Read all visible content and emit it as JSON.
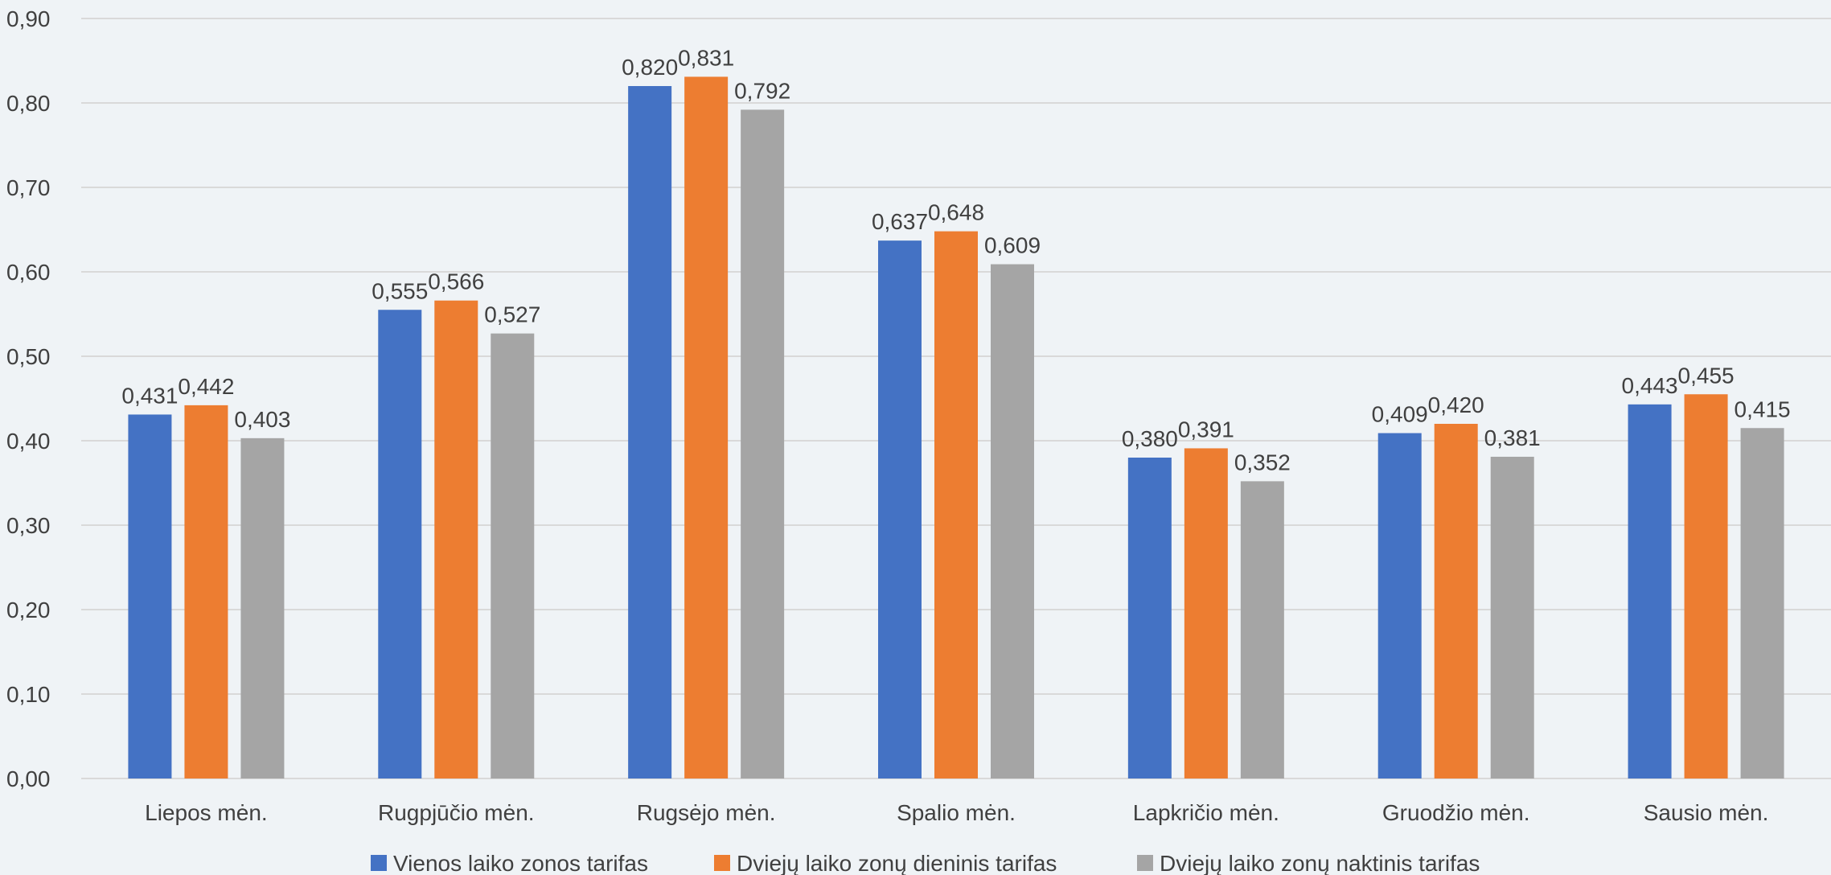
{
  "chart_data": {
    "type": "bar",
    "categories": [
      "Liepos mėn.",
      "Rugpjūčio mėn.",
      "Rugsėjo mėn.",
      "Spalio mėn.",
      "Lapkričio mėn.",
      "Gruodžio mėn.",
      "Sausio mėn."
    ],
    "series": [
      {
        "name": "Vienos laiko zonos tarifas",
        "color": "#4472C4",
        "values": [
          0.431,
          0.555,
          0.82,
          0.637,
          0.38,
          0.409,
          0.443
        ],
        "labels": [
          "0,431",
          "0,555",
          "0,820",
          "0,637",
          "0,380",
          "0,409",
          "0,443"
        ]
      },
      {
        "name": "Dviejų laiko zonų dieninis tarifas",
        "color": "#ED7D31",
        "values": [
          0.442,
          0.566,
          0.831,
          0.648,
          0.391,
          0.42,
          0.455
        ],
        "labels": [
          "0,442",
          "0,566",
          "0,831",
          "0,648",
          "0,391",
          "0,420",
          "0,455"
        ]
      },
      {
        "name": "Dviejų laiko zonų naktinis tarifas",
        "color": "#A5A5A5",
        "values": [
          0.403,
          0.527,
          0.792,
          0.609,
          0.352,
          0.381,
          0.415
        ],
        "labels": [
          "0,403",
          "0,527",
          "0,792",
          "0,609",
          "0,352",
          "0,381",
          "0,415"
        ]
      }
    ],
    "ylim": [
      0,
      0.9
    ],
    "yticks": [
      0,
      0.1,
      0.2,
      0.3,
      0.4,
      0.5,
      0.6,
      0.7,
      0.8,
      0.9
    ],
    "ytick_labels": [
      "0,00",
      "0,10",
      "0,20",
      "0,30",
      "0,40",
      "0,50",
      "0,60",
      "0,70",
      "0,80",
      "0,90"
    ],
    "title": "",
    "xlabel": "",
    "ylabel": "",
    "grid": true,
    "legend_position": "bottom",
    "colors": {
      "background": "#EFF3F6",
      "gridline": "#D9D9D9",
      "text": "#404040"
    }
  }
}
